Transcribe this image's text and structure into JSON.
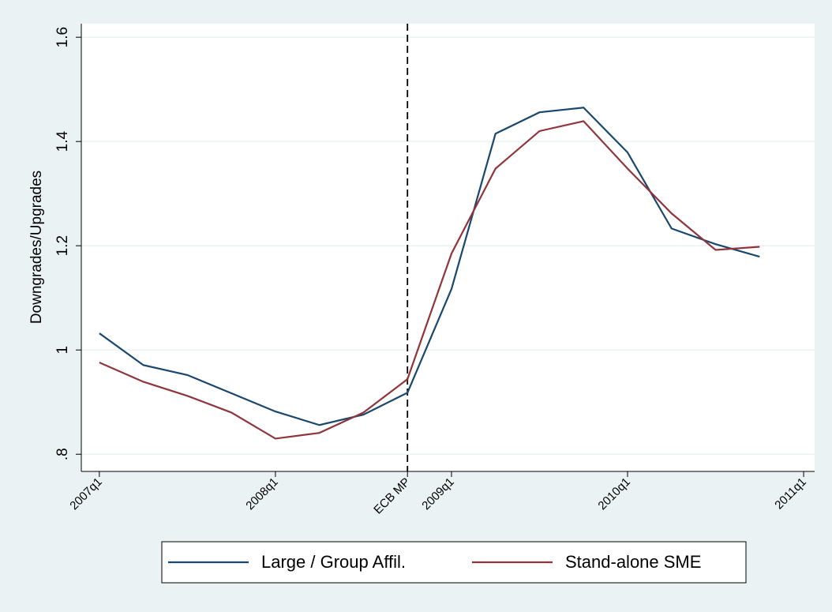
{
  "chart_data": {
    "type": "line",
    "y_label": "Downgrades/Upgrades",
    "x": [
      188,
      189,
      190,
      191,
      192,
      193,
      194,
      195,
      196,
      197,
      198,
      199,
      200,
      201,
      202,
      203
    ],
    "series": [
      {
        "name": "Large / Group Affil.",
        "color": "#1a476f",
        "values": [
          1.032,
          0.971,
          0.952,
          0.917,
          0.882,
          0.856,
          0.876,
          0.918,
          1.117,
          1.415,
          1.456,
          1.465,
          1.379,
          1.233,
          1.203,
          1.179
        ]
      },
      {
        "name": "Stand-alone SME",
        "color": "#90353b",
        "values": [
          0.976,
          0.939,
          0.912,
          0.88,
          0.83,
          0.841,
          0.88,
          0.944,
          1.185,
          1.348,
          1.42,
          1.439,
          1.348,
          1.262,
          1.192,
          1.198
        ]
      }
    ],
    "xlim": [
      187.59,
      204.25
    ],
    "xticks": [
      {
        "value": 188,
        "label": "2007q1"
      },
      {
        "value": 192,
        "label": "2008q1"
      },
      {
        "value": 195,
        "label": "ECB MP"
      },
      {
        "value": 196,
        "label": "2009q1"
      },
      {
        "value": 200,
        "label": "2010q1"
      },
      {
        "value": 204,
        "label": "2011q1"
      }
    ],
    "xline": 195,
    "ylim": [
      0.767,
      1.626
    ],
    "yticks": [
      {
        "value": 0.8,
        "label": ".8"
      },
      1,
      1.2,
      1.4,
      1.6
    ],
    "grid": true
  }
}
